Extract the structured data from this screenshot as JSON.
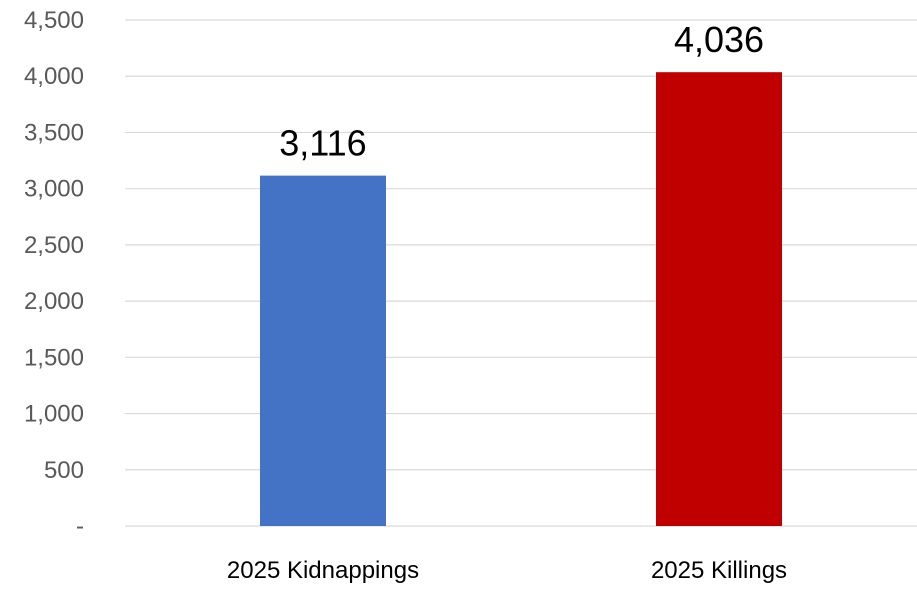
{
  "chart_data": {
    "type": "bar",
    "title": "",
    "xlabel": "",
    "ylabel": "",
    "categories": [
      "2025 Kidnappings",
      "2025 Killings"
    ],
    "values": [
      3116,
      4036
    ],
    "data_labels": [
      "3,116",
      "4,036"
    ],
    "bar_colors": [
      "#4472C4",
      "#C00000"
    ],
    "ylim": [
      0,
      4500
    ],
    "y_ticks": [
      0,
      500,
      1000,
      1500,
      2000,
      2500,
      3000,
      3500,
      4000,
      4500
    ],
    "y_tick_labels": [
      "-",
      "500",
      "1,000",
      "1,500",
      "2,000",
      "2,500",
      "3,000",
      "3,500",
      "4,000",
      "4,500"
    ],
    "grid": true,
    "legend": "none"
  }
}
